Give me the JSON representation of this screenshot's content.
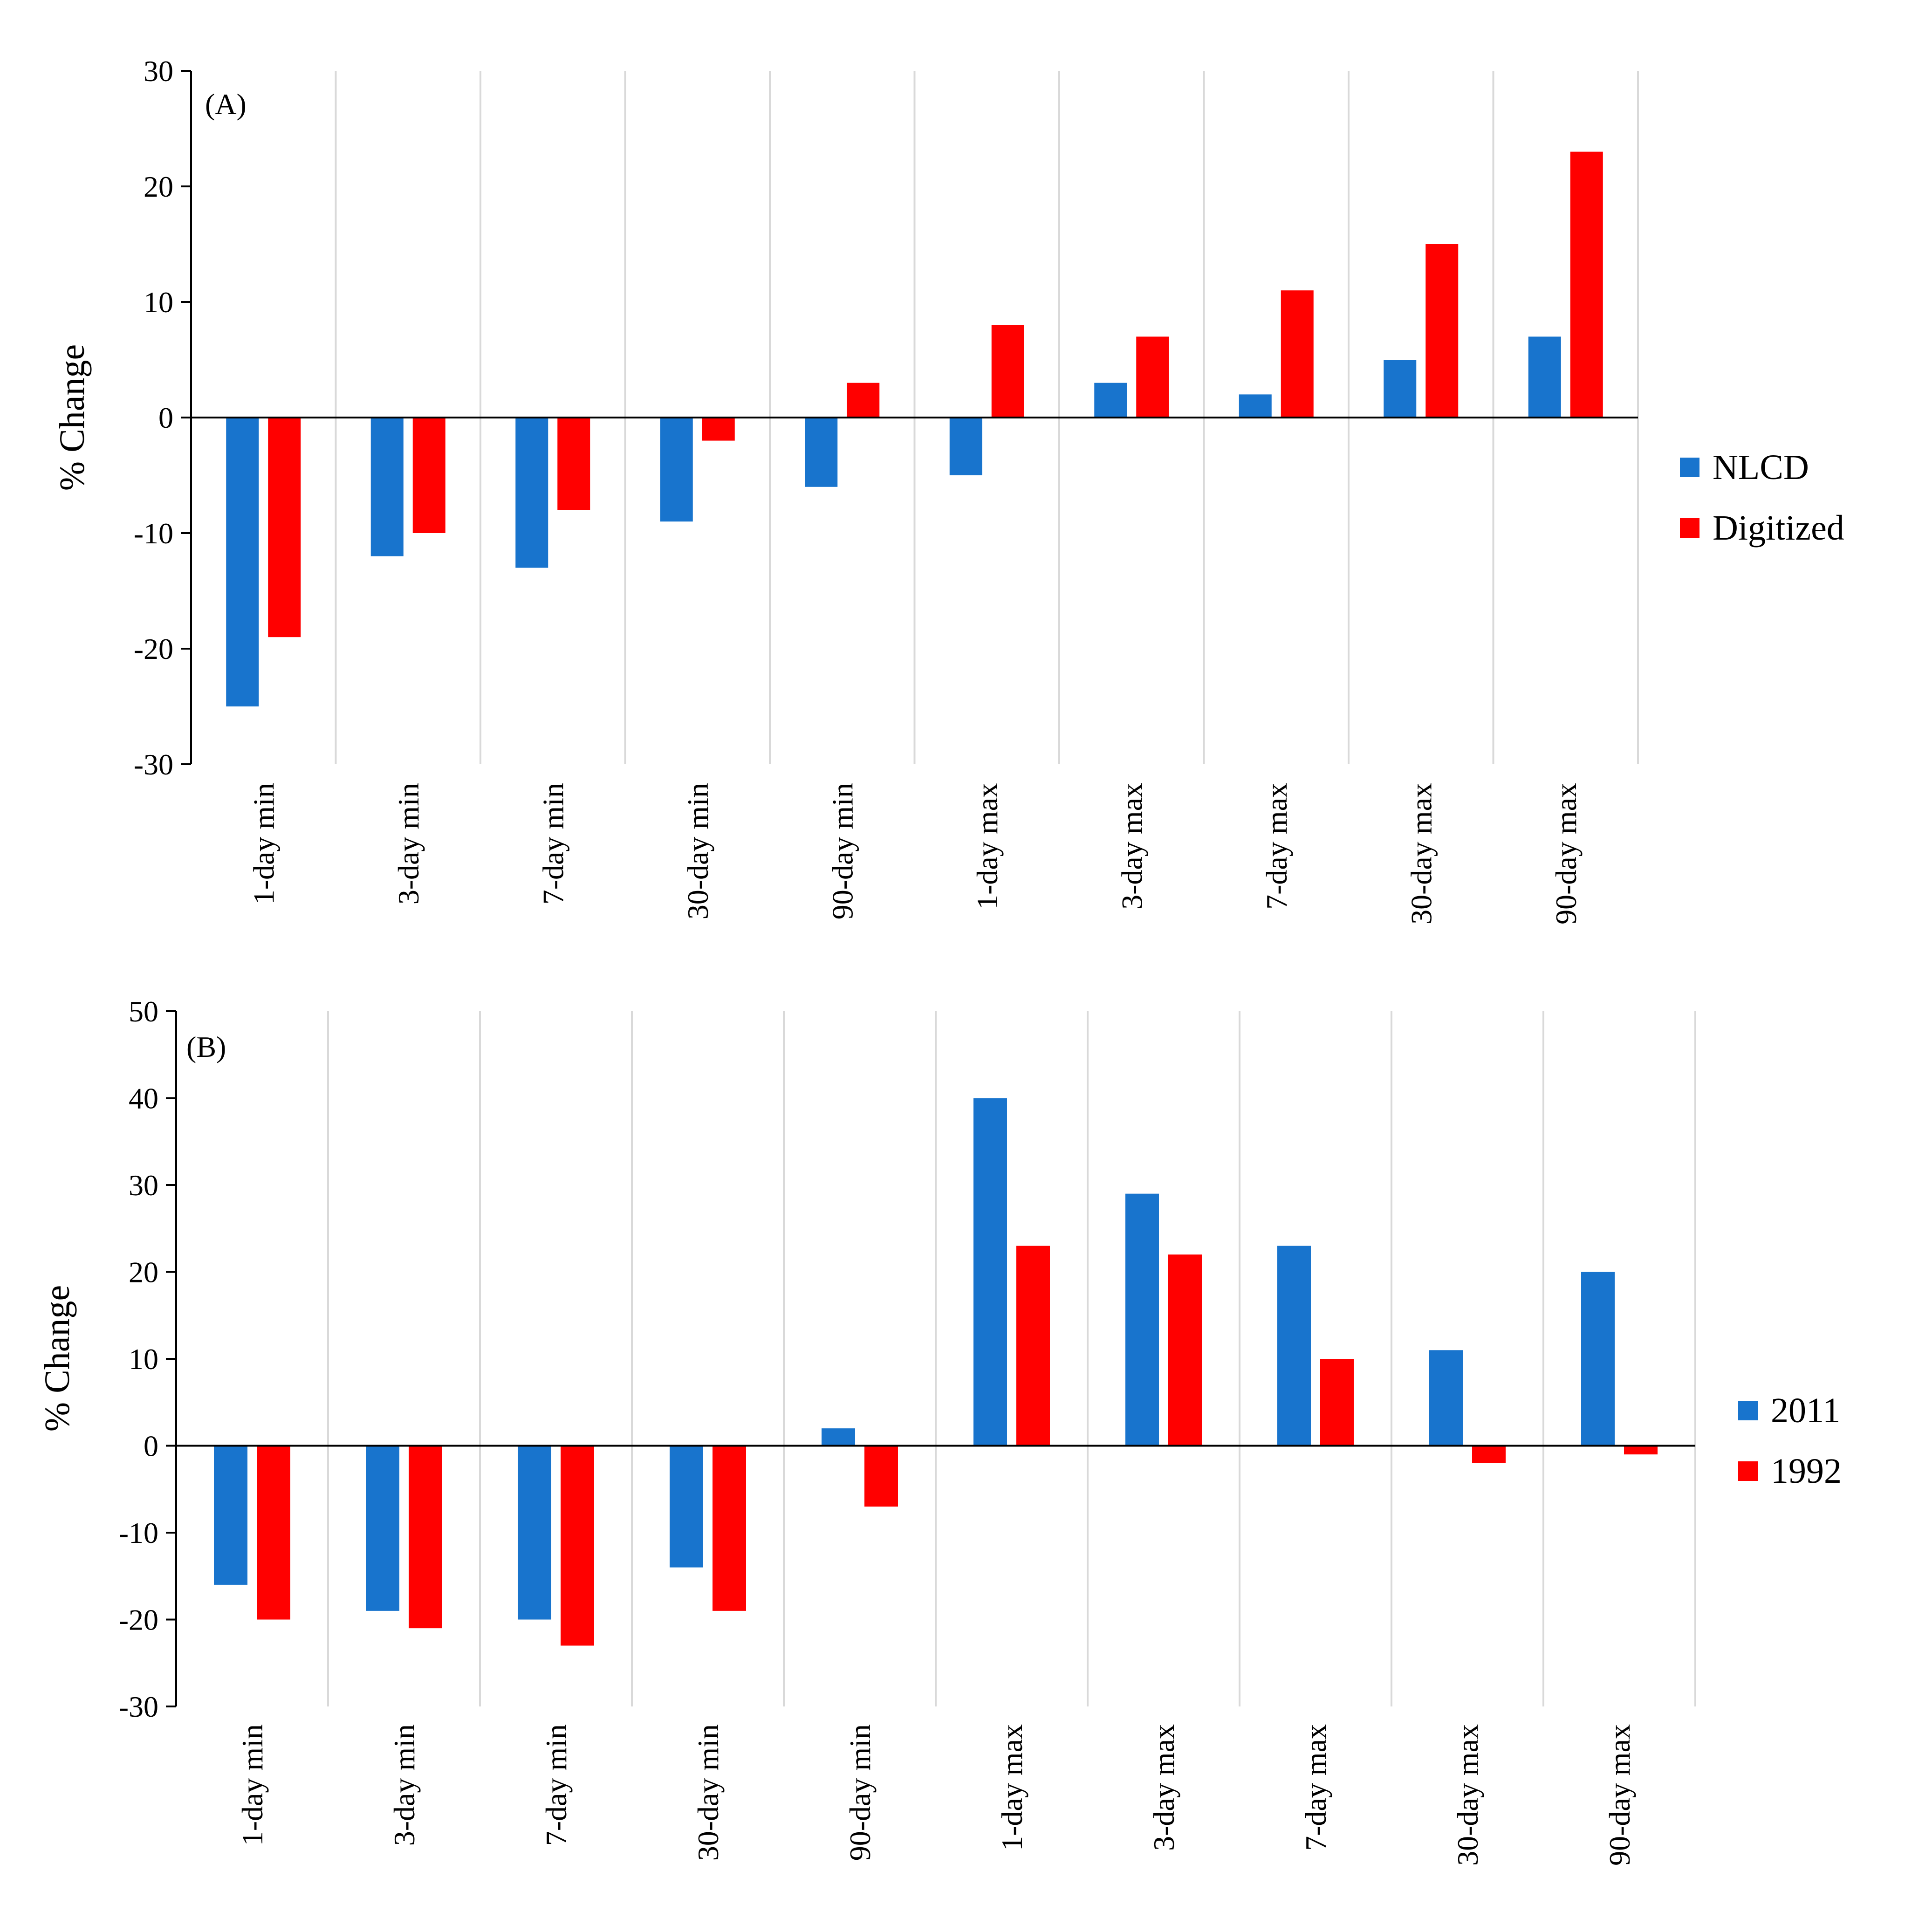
{
  "chart_data": [
    {
      "type": "bar",
      "panel_label": "(A)",
      "ylabel": "% Change",
      "ylim": [
        -30,
        30
      ],
      "yticks": [
        -30,
        -20,
        -10,
        0,
        10,
        20,
        30
      ],
      "grid": "vertical",
      "legend_position": "right",
      "categories": [
        "1-day min",
        "3-day min",
        "7-day min",
        "30-day min",
        "90-day min",
        "1-day max",
        "3-day max",
        "7-day max",
        "30-day max",
        "90-day max"
      ],
      "series": [
        {
          "name": "NLCD",
          "color": "#1874cd",
          "values": [
            -25,
            -12,
            -13,
            -9,
            -6,
            -5,
            3,
            2,
            5,
            7
          ]
        },
        {
          "name": "Digitized",
          "color": "#ff0000",
          "values": [
            -19,
            -10,
            -8,
            -2,
            3,
            8,
            7,
            11,
            15,
            23
          ]
        }
      ]
    },
    {
      "type": "bar",
      "panel_label": "(B)",
      "ylabel": "% Change",
      "ylim": [
        -30,
        50
      ],
      "yticks": [
        -30,
        -20,
        -10,
        0,
        10,
        20,
        30,
        40,
        50
      ],
      "grid": "vertical",
      "legend_position": "right",
      "categories": [
        "1-day min",
        "3-day min",
        "7-day min",
        "30-day min",
        "90-day min",
        "1-day max",
        "3-day max",
        "7-day max",
        "30-day max",
        "90-day max"
      ],
      "series": [
        {
          "name": "2011",
          "color": "#1874cd",
          "values": [
            -16,
            -19,
            -20,
            -14,
            2,
            40,
            29,
            23,
            11,
            20
          ]
        },
        {
          "name": "1992",
          "color": "#ff0000",
          "values": [
            -20,
            -21,
            -23,
            -19,
            -7,
            23,
            22,
            10,
            -2,
            -1
          ]
        }
      ]
    }
  ]
}
